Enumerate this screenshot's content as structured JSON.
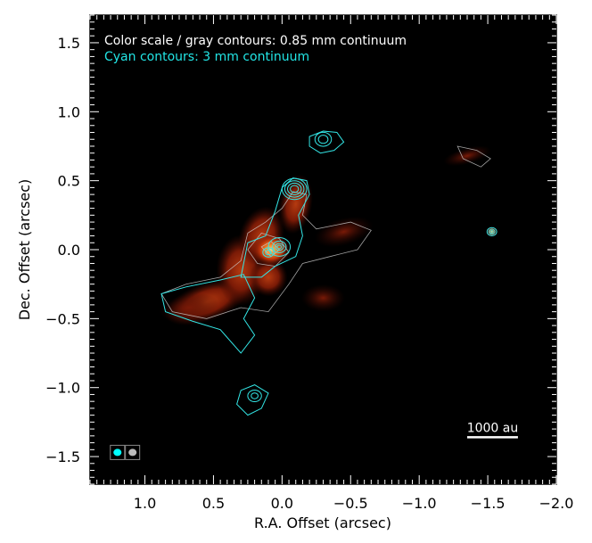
{
  "chart_data": {
    "type": "heatmap",
    "xlabel": "R.A. Offset (arcsec)",
    "ylabel": "Dec. Offset (arcsec)",
    "xlim": [
      1.4,
      -2.0
    ],
    "ylim": [
      -1.7,
      1.7
    ],
    "x_ticks": [
      1.0,
      0.5,
      0.0,
      -0.5,
      -1.0,
      -1.5,
      -2.0
    ],
    "x_tick_labels": [
      "1.0",
      "0.5",
      "0.0",
      "−0.5",
      "−1.0",
      "−1.5",
      "−2.0"
    ],
    "y_ticks": [
      1.5,
      1.0,
      0.5,
      0.0,
      -0.5,
      -1.0,
      -1.5
    ],
    "y_tick_labels": [
      "1.5",
      "1.0",
      "0.5",
      "0.0",
      "−0.5",
      "−1.0",
      "−1.5"
    ],
    "annotations": [
      {
        "text": "Color scale / gray contours: 0.85 mm continuum",
        "color": "#ffffff"
      },
      {
        "text": "Cyan contours: 3 mm continuum",
        "color": "#22e5e5"
      }
    ],
    "scale_bar": {
      "label": "1000 au",
      "length_arcsec": 0.37,
      "x_start": -1.35,
      "y": -1.36
    },
    "beams": [
      {
        "name": "3 mm beam",
        "color": "#00ffff",
        "x": 1.2,
        "y": -1.47
      },
      {
        "name": "0.85 mm beam",
        "color": "#bbbbbb",
        "x": 1.09,
        "y": -1.47
      }
    ],
    "colors": {
      "background": "#000000",
      "contour_cyan": "#33e6e6",
      "contour_gray": "#cccccc",
      "emission_peak": "#ff9a3a",
      "emission_low": "#6a1405"
    },
    "emission_regions": [
      {
        "name": "central core",
        "x": 0.05,
        "y": 0.0,
        "peak": 1.0
      },
      {
        "name": "southeast arm",
        "x": 0.55,
        "y": -0.35,
        "peak": 0.35
      },
      {
        "name": "north filament",
        "x": -0.1,
        "y": 0.35,
        "peak": 0.4
      },
      {
        "name": "west extension",
        "x": -0.45,
        "y": 0.1,
        "peak": 0.3
      },
      {
        "name": "northwest clump",
        "x": -1.35,
        "y": 0.68,
        "peak": 0.25
      },
      {
        "name": "compact source",
        "x": -1.53,
        "y": 0.13,
        "peak": 0.6
      }
    ],
    "cyan_sources": [
      {
        "name": "north cloud",
        "x": -0.28,
        "y": 0.78
      },
      {
        "name": "north knot",
        "x": -0.09,
        "y": 0.44
      },
      {
        "name": "core 3mm",
        "x": 0.02,
        "y": 0.02
      },
      {
        "name": "south clump",
        "x": 0.2,
        "y": -1.06
      },
      {
        "name": "west compact",
        "x": -1.53,
        "y": 0.13
      }
    ]
  }
}
